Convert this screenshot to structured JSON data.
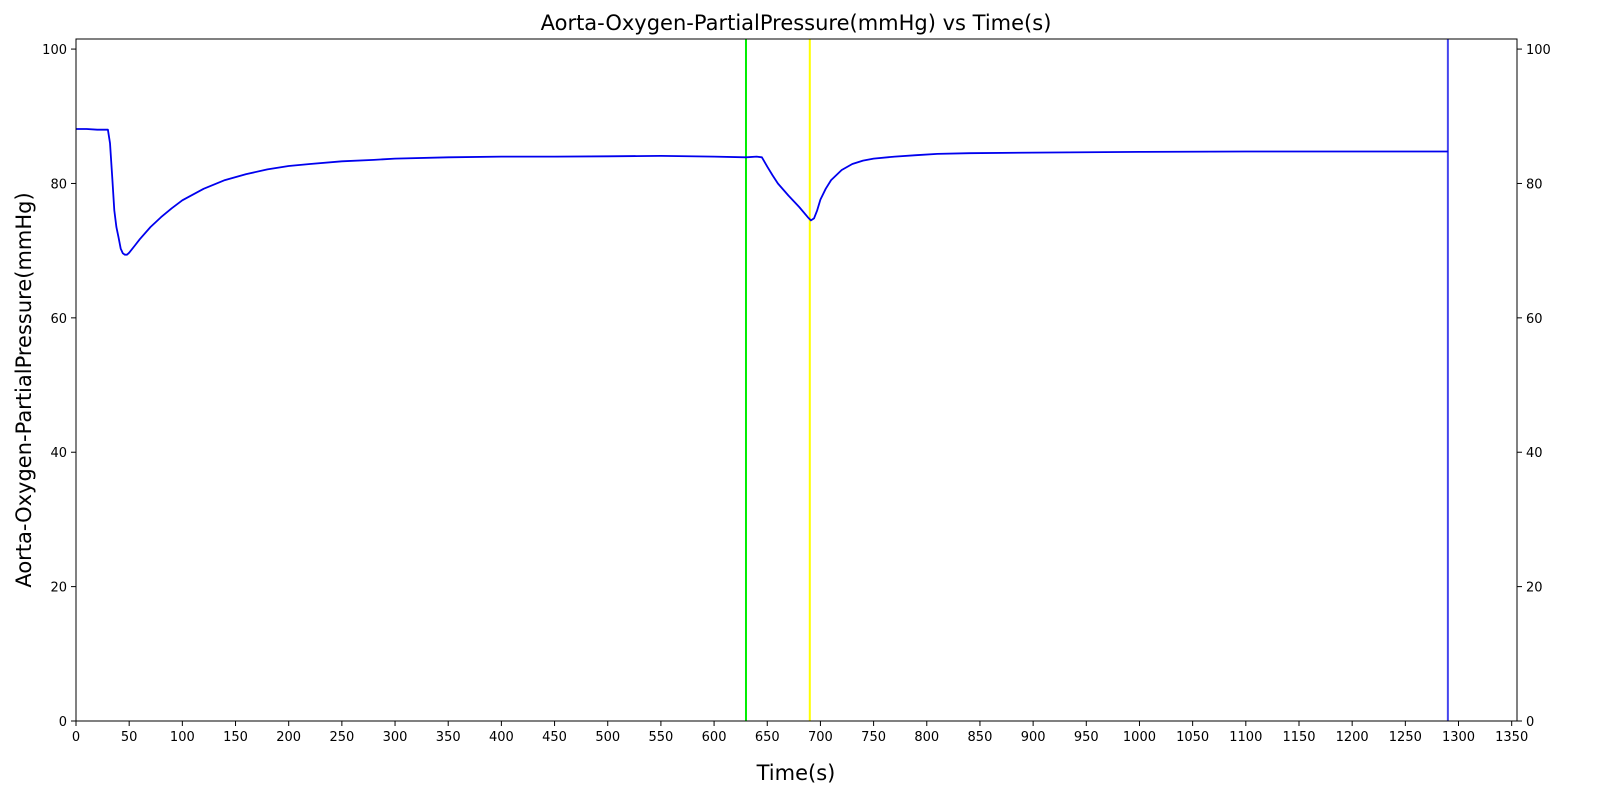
{
  "chart_data": {
    "type": "line",
    "title": "Aorta-Oxygen-PartialPressure(mmHg) vs Time(s)",
    "xlabel": "Time(s)",
    "ylabel": "Aorta-Oxygen-PartialPressure(mmHg)",
    "xlim": [
      0,
      1355
    ],
    "ylim": [
      0,
      101.5
    ],
    "xticks": [
      0,
      50,
      100,
      150,
      200,
      250,
      300,
      350,
      400,
      450,
      500,
      550,
      600,
      650,
      700,
      750,
      800,
      850,
      900,
      950,
      1000,
      1050,
      1100,
      1150,
      1200,
      1250,
      1300,
      1350
    ],
    "yticks": [
      0,
      20,
      40,
      60,
      80,
      100
    ],
    "secondary_y_axis": true,
    "grid": false,
    "series": [
      {
        "color": "#0000ee",
        "x": [
          0,
          10,
          20,
          30,
          32,
          34,
          36,
          38,
          40,
          42,
          44,
          46,
          48,
          50,
          55,
          60,
          70,
          80,
          90,
          100,
          120,
          140,
          160,
          180,
          200,
          220,
          250,
          280,
          300,
          350,
          400,
          450,
          500,
          550,
          600,
          630,
          640,
          645,
          650,
          655,
          660,
          670,
          680,
          688,
          691,
          694,
          697,
          700,
          705,
          710,
          720,
          730,
          740,
          750,
          770,
          790,
          810,
          840,
          900,
          1000,
          1100,
          1200,
          1290
        ],
        "y": [
          88.1,
          88.1,
          88.0,
          88.0,
          86.0,
          81.0,
          76.0,
          73.5,
          72.0,
          70.3,
          69.6,
          69.4,
          69.4,
          69.7,
          70.7,
          71.7,
          73.5,
          75.0,
          76.3,
          77.5,
          79.2,
          80.5,
          81.4,
          82.1,
          82.6,
          82.9,
          83.3,
          83.5,
          83.7,
          83.9,
          84.0,
          84.0,
          84.05,
          84.1,
          84.0,
          83.9,
          84.0,
          83.9,
          82.5,
          81.2,
          80.0,
          78.2,
          76.5,
          75.0,
          74.5,
          74.8,
          76.0,
          77.6,
          79.2,
          80.5,
          82.0,
          82.9,
          83.4,
          83.7,
          84.0,
          84.2,
          84.4,
          84.5,
          84.6,
          84.7,
          84.75,
          84.75,
          84.75
        ]
      }
    ],
    "vertical_lines": [
      {
        "x": 630,
        "color": "#00ee00"
      },
      {
        "x": 690,
        "color": "#ffff00"
      },
      {
        "x": 1290,
        "color": "#4444ee"
      }
    ]
  }
}
